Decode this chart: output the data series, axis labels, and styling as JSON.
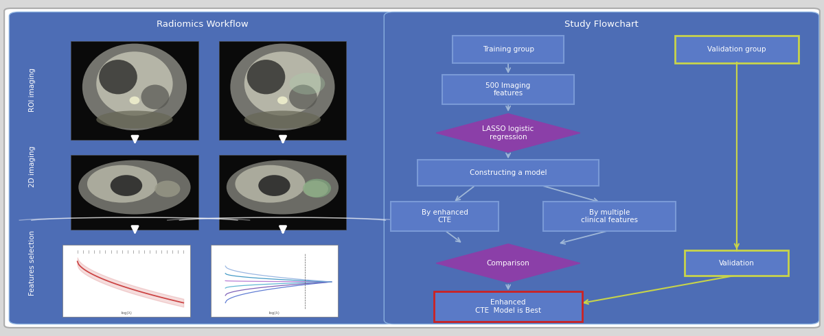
{
  "fig_width": 12.0,
  "fig_height": 4.9,
  "dpi": 100,
  "bg_color": "#d8d8d8",
  "left_panel_bg": "#4d6db5",
  "right_panel_bg": "#4d6db5",
  "left_title": "Radiomics Workflow",
  "right_title": "Study Flowchart",
  "left_labels": [
    "ROI imaging",
    "2D imaging",
    "Features selection"
  ],
  "node_color": "#5a7ac7",
  "node_border": "#7a9ad7",
  "diamond_color": "#8b3fa8",
  "yellow_border": "#c8d44a",
  "red_border": "#cc2222",
  "arrow_color": "#a0b8d8",
  "yellow_arrow": "#c8d44a"
}
